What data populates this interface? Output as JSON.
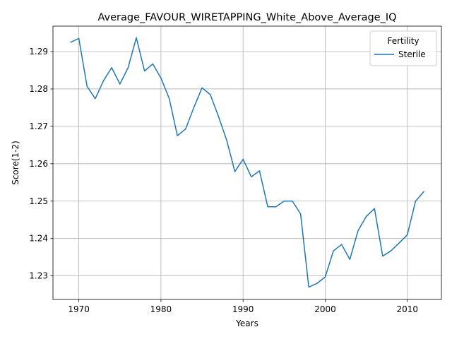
{
  "chart_data": {
    "type": "line",
    "title": "Average_FAVOUR_WIRETAPPING_White_Above_Average_IQ",
    "xlabel": "Years",
    "ylabel": "Score(1-2)",
    "xlim": [
      1966.85,
      2014.15
    ],
    "ylim": [
      1.2237,
      1.2968
    ],
    "x_ticks": [
      1970,
      1980,
      1990,
      2000,
      2010
    ],
    "x_tick_labels": [
      "1970",
      "1980",
      "1990",
      "2000",
      "2010"
    ],
    "y_ticks": [
      1.23,
      1.24,
      1.25,
      1.26,
      1.27,
      1.28,
      1.29
    ],
    "y_tick_labels": [
      "1.23",
      "1.24",
      "1.25",
      "1.26",
      "1.27",
      "1.28",
      "1.29"
    ],
    "grid": true,
    "legend": {
      "title": "Fertility",
      "position": "top-right"
    },
    "series": [
      {
        "name": "Sterile",
        "color": "#1f77b4",
        "x": [
          1969,
          1970,
          1971,
          1972,
          1973,
          1974,
          1975,
          1976,
          1977,
          1978,
          1979,
          1980,
          1981,
          1982,
          1983,
          1984,
          1985,
          1986,
          1987,
          1988,
          1989,
          1990,
          1991,
          1992,
          1993,
          1994,
          1995,
          1996,
          1997,
          1998,
          1999,
          2000,
          2001,
          2002,
          2003,
          2004,
          2005,
          2006,
          2007,
          2008,
          2009,
          2010,
          2011,
          2012
        ],
        "y": [
          1.2925,
          1.2935,
          1.2807,
          1.2774,
          1.2822,
          1.2857,
          1.2813,
          1.2857,
          1.2937,
          1.2848,
          1.2867,
          1.2829,
          1.2775,
          1.2675,
          1.2693,
          1.275,
          1.2803,
          1.2785,
          1.2727,
          1.2663,
          1.2579,
          1.2612,
          1.2565,
          1.2581,
          1.2485,
          1.2485,
          1.25,
          1.25,
          1.2466,
          1.227,
          1.228,
          1.2297,
          1.2367,
          1.2384,
          1.2344,
          1.2421,
          1.2459,
          1.248,
          1.2353,
          1.2367,
          1.2388,
          1.241,
          1.25,
          1.2525
        ]
      }
    ]
  }
}
